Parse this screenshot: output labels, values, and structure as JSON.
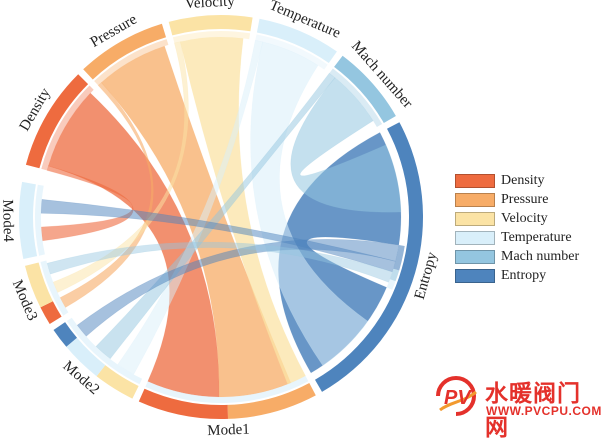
{
  "diagram": {
    "type": "chord",
    "nodes": [
      {
        "id": "density",
        "label": "Density",
        "color": "#ee6b3f"
      },
      {
        "id": "pressure",
        "label": "Pressure",
        "color": "#f7ac67"
      },
      {
        "id": "velocity",
        "label": "Velocity",
        "color": "#fbe3a5"
      },
      {
        "id": "temperature",
        "label": "Temperature",
        "color": "#d9effa"
      },
      {
        "id": "mach",
        "label": "Mach number",
        "color": "#94c6e0"
      },
      {
        "id": "entropy",
        "label": "Entropy",
        "color": "#4e84bd"
      },
      {
        "id": "mode1",
        "label": "Mode1",
        "color": "#d9effa"
      },
      {
        "id": "mode2",
        "label": "Mode2",
        "color": "#d9effa"
      },
      {
        "id": "mode3",
        "label": "Mode3",
        "color": "#d9effa"
      },
      {
        "id": "mode4",
        "label": "Mode4",
        "color": "#d9effa"
      }
    ],
    "legend": [
      {
        "label": "Density",
        "color": "#ee6b3f"
      },
      {
        "label": "Pressure",
        "color": "#f7ac67"
      },
      {
        "label": "Velocity",
        "color": "#fbe3a5"
      },
      {
        "label": "Temperature",
        "color": "#d9effa"
      },
      {
        "label": "Mach number",
        "color": "#94c6e0"
      },
      {
        "label": "Entropy",
        "color": "#4e84bd"
      }
    ]
  },
  "watermark": {
    "title": "水暖阀门网",
    "url": "WWW.PVCPU.COM",
    "logo_letters": "PV",
    "color": "#e4312b"
  }
}
